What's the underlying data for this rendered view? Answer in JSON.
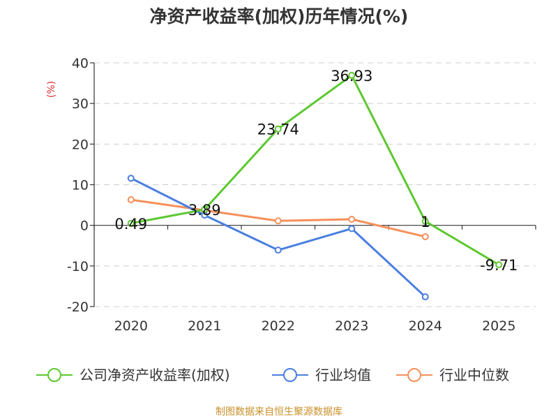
{
  "chart_data": {
    "type": "line",
    "title": "净资产收益率(加权)历年情况(%)",
    "ylabel": "(%)",
    "categories": [
      "2020",
      "2021",
      "2022",
      "2023",
      "2024",
      "2025"
    ],
    "ylim": [
      -20,
      40
    ],
    "yticks": [
      40,
      30,
      20,
      10,
      0,
      -10,
      -20
    ],
    "grid": true,
    "legend_position": "bottom",
    "series": [
      {
        "name": "公司净资产收益率(加权)",
        "color": "#5cc830",
        "values": [
          0.49,
          3.89,
          23.74,
          36.93,
          1,
          -9.71
        ],
        "labels": [
          "0.49",
          "3.89",
          "23.74",
          "36.93",
          "1",
          "-9.71"
        ]
      },
      {
        "name": "行业均值",
        "color": "#4a7fe0",
        "values": [
          11.6,
          2.5,
          -6.1,
          -0.8,
          -17.6,
          null
        ]
      },
      {
        "name": "行业中位数",
        "color": "#f5905a",
        "values": [
          6.3,
          3.7,
          1.1,
          1.5,
          -2.8,
          null
        ]
      }
    ],
    "source": "制图数据来自恒生聚源数据库"
  }
}
